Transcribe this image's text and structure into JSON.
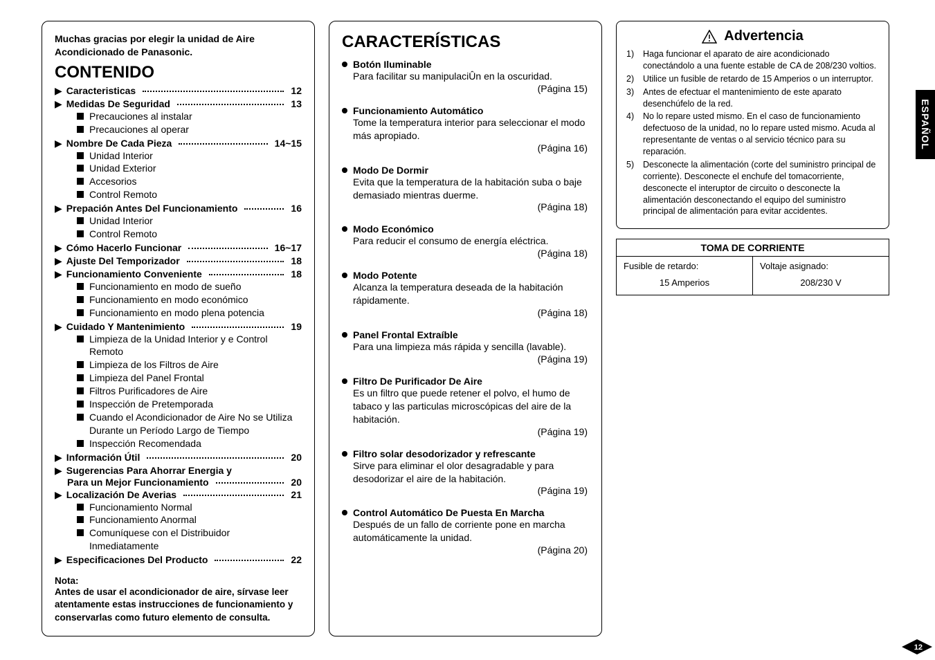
{
  "thanks_line1": "Muchas gracias por elegir la unidad de Aire",
  "thanks_line2": "Acondicionado de Panasonic.",
  "contenido_title": "CONTENIDO",
  "side_tab": "ESPAÑOL",
  "page_number": "12",
  "toc": [
    {
      "type": "l1",
      "label": "Caracteristicas",
      "page": "12"
    },
    {
      "type": "l1",
      "label": "Medidas De Seguridad",
      "page": "13"
    },
    {
      "type": "l2",
      "label": "Precauciones al instalar"
    },
    {
      "type": "l2",
      "label": "Precauciones al operar"
    },
    {
      "type": "l1",
      "label": "Nombre De Cada Pieza",
      "page": "14~15"
    },
    {
      "type": "l2",
      "label": "Unidad Interior"
    },
    {
      "type": "l2",
      "label": "Unidad Exterior"
    },
    {
      "type": "l2",
      "label": "Accesorios"
    },
    {
      "type": "l2",
      "label": "Control Remoto"
    },
    {
      "type": "l1",
      "label": "Prepación Antes Del Funcionamiento",
      "page": "16"
    },
    {
      "type": "l2",
      "label": "Unidad Interior"
    },
    {
      "type": "l2",
      "label": "Control Remoto"
    },
    {
      "type": "l1",
      "label": "Cómo Hacerlo Funcionar",
      "page": "16~17"
    },
    {
      "type": "l1",
      "label": "Ajuste Del Temporizador",
      "page": "18"
    },
    {
      "type": "l1",
      "label": "Funcionamiento Conveniente",
      "page": "18"
    },
    {
      "type": "l2",
      "label": "Funcionamiento en modo de sueño"
    },
    {
      "type": "l2",
      "label": "Funcionamiento en modo económico"
    },
    {
      "type": "l2",
      "label": "Funcionamiento en modo plena potencia"
    },
    {
      "type": "l1",
      "label": "Cuidado Y Mantenimiento",
      "page": "19"
    },
    {
      "type": "l2",
      "label": "Limpieza de la Unidad Interior y e Control Remoto"
    },
    {
      "type": "l2",
      "label": "Limpieza de los Filtros de Aire"
    },
    {
      "type": "l2",
      "label": "Limpieza del Panel Frontal"
    },
    {
      "type": "l2",
      "label": "Filtros Purificadores de Aire"
    },
    {
      "type": "l2",
      "label": "Inspección de Pretemporada"
    },
    {
      "type": "l2",
      "label": "Cuando el Acondicionador de Aire No se Utiliza Durante un Período Largo de Tiempo"
    },
    {
      "type": "l2",
      "label": "Inspección Recomendada"
    },
    {
      "type": "l1",
      "label": "Información Útil",
      "page": "20"
    },
    {
      "type": "l1m",
      "line1": "Sugerencias Para Ahorrar Energia y",
      "line2": "Para un Mejor Funcionamiento",
      "page": "20"
    },
    {
      "type": "l1",
      "label": "Localización De Averias",
      "page": "21"
    },
    {
      "type": "l2",
      "label": "Funcionamiento Normal"
    },
    {
      "type": "l2",
      "label": "Funcionamiento Anormal"
    },
    {
      "type": "l2",
      "label": "Comuníquese con el Distribuidor Inmediatamente"
    },
    {
      "type": "l1",
      "label": "Especificaciones Del Producto",
      "page": "22"
    }
  ],
  "note_head": "Nota:",
  "note_body": "Antes de usar el acondicionador de aire, sírvase leer atentamente estas instrucciones de funcionamiento y conservarlas como futuro elemento de consulta.",
  "features_title": "CARACTERÍSTICAS",
  "features": [
    {
      "title": "Botón Iluminable",
      "desc": "Para facilitar su manipulaciÛn en la oscuridad.",
      "page": "(Página 15)"
    },
    {
      "title": "Funcionamiento Automático",
      "desc": "Tome la temperatura interior para seleccionar el modo más apropiado.",
      "page": "(Página 16)"
    },
    {
      "title": "Modo De Dormir",
      "desc": "Evita que la temperatura de la habitación suba o baje demasiado mientras duerme.",
      "page": "(Página 18)"
    },
    {
      "title": "Modo Económico",
      "desc": "Para reducir el consumo de energía eléctrica.",
      "page": "(Página 18)"
    },
    {
      "title": "Modo Potente",
      "desc": "Alcanza la temperatura deseada de la habitación rápidamente.",
      "page": "(Página 18)"
    },
    {
      "title": "Panel Frontal Extraíble",
      "desc": "Para una limpieza más rápida y sencilla (lavable).",
      "page": "(Página 19)"
    },
    {
      "title": "Filtro De Purificador De Aire",
      "desc": "Es un filtro que puede retener el polvo, el humo de tabaco y las particulas microscópicas del aire de la habitación.",
      "page": "(Página 19)"
    },
    {
      "title": "Filtro solar desodorizador y refrescante",
      "desc": "Sirve para eliminar el olor desagradable y para desodorizar el aire de la habitación.",
      "page": "(Página 19)"
    },
    {
      "title": "Control Automático De Puesta En Marcha",
      "desc": "Después de un fallo de corriente pone en marcha automáticamente la unidad.",
      "page": "(Página 20)"
    }
  ],
  "warning_title": "Advertencia",
  "warnings": [
    {
      "n": "1)",
      "t": "Haga funcionar el aparato de aire acondicionado conectándolo a una fuente estable de CA de 208/230 voltios."
    },
    {
      "n": "2)",
      "t": "Utilice un fusible de retardo de 15 Amperios o un interruptor."
    },
    {
      "n": "3)",
      "t": "Antes de efectuar el mantenimiento de este aparato desenchúfelo de la red."
    },
    {
      "n": "4)",
      "t": "No lo repare usted mismo.\nEn el caso de funcionamiento defectuoso de la unidad, no lo repare usted mismo. Acuda al representante de ventas o al servicio técnico para su reparación."
    },
    {
      "n": "5)",
      "t": "Desconecte la alimentación (corte del suministro principal de corriente). Desconecte el enchufe del tomacorriente, desconecte el interuptor de circuito o desconecte la alimentación desconectando el equipo del suministro principal de alimentación para evitar accidentes."
    }
  ],
  "outlet": {
    "head": "TOMA DE CORRIENTE",
    "left_label": "Fusible de retardo:",
    "left_value": "15 Amperios",
    "right_label": "Voltaje asignado:",
    "right_value": "208/230 V"
  }
}
